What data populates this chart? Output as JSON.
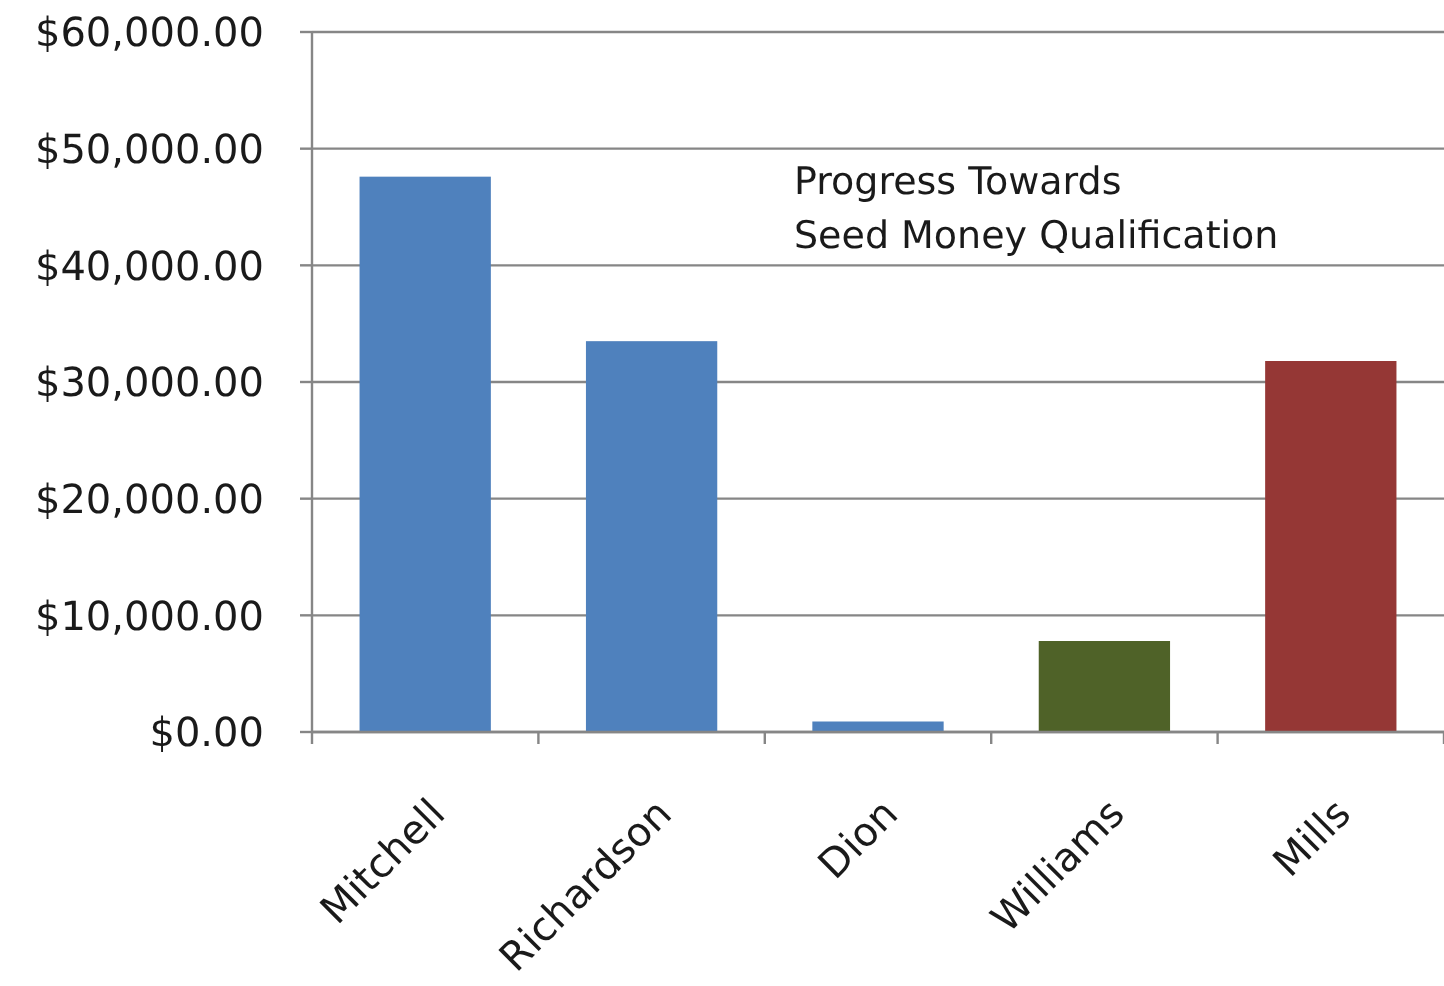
{
  "chart_data": {
    "type": "bar",
    "title": "Progress Towards\nSeed Money Qualification",
    "categories": [
      "Mitchell",
      "Richardson",
      "Dion",
      "Williams",
      "Mills"
    ],
    "values": [
      47600,
      33500,
      900,
      7800,
      31800
    ],
    "colors": [
      "#4f81bd",
      "#4f81bd",
      "#4f81bd",
      "#4f6228",
      "#953735"
    ],
    "ylim": [
      0,
      60000
    ],
    "yticks": [
      {
        "value": 0,
        "label": "$0.00"
      },
      {
        "value": 10000,
        "label": "$10,000.00"
      },
      {
        "value": 20000,
        "label": "$20,000.00"
      },
      {
        "value": 30000,
        "label": "$30,000.00"
      },
      {
        "value": 40000,
        "label": "$40,000.00"
      },
      {
        "value": 50000,
        "label": "$50,000.00"
      },
      {
        "value": 60000,
        "label": "$60,000.00"
      }
    ],
    "grid": "y"
  }
}
